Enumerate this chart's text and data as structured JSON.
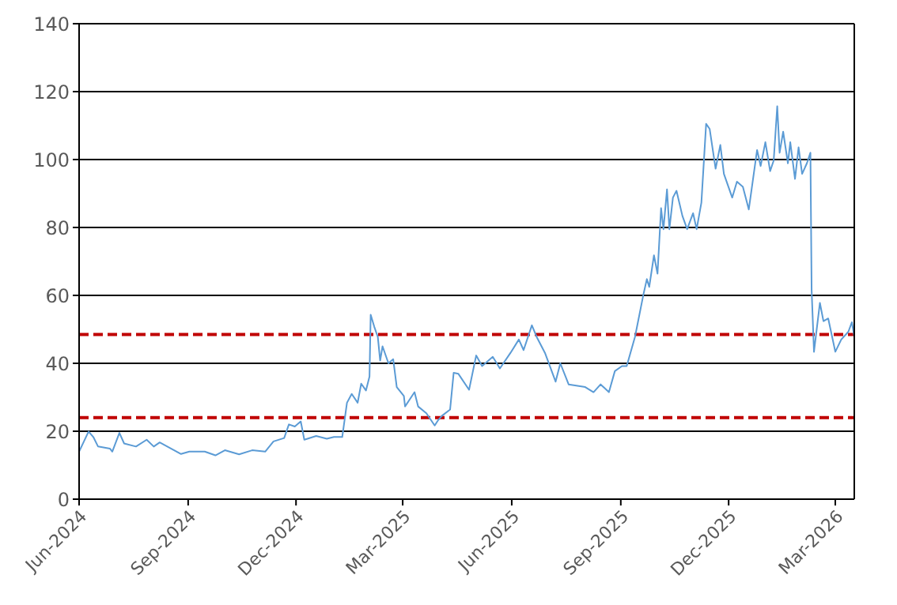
{
  "chart_data": {
    "type": "line",
    "x": [
      "2024-06-01",
      "2024-06-09",
      "2024-06-13",
      "2024-06-17",
      "2024-06-27",
      "2024-06-29",
      "2024-07-05",
      "2024-07-09",
      "2024-07-19",
      "2024-07-28",
      "2024-08-03",
      "2024-08-08",
      "2024-08-26",
      "2024-09-02",
      "2024-09-15",
      "2024-09-24",
      "2024-10-02",
      "2024-10-14",
      "2024-10-25",
      "2024-11-05",
      "2024-11-12",
      "2024-11-21",
      "2024-11-25",
      "2024-11-30",
      "2024-12-05",
      "2024-12-08",
      "2024-12-18",
      "2024-12-27",
      "2025-01-02",
      "2025-01-09",
      "2025-01-13",
      "2025-01-17",
      "2025-01-22",
      "2025-01-25",
      "2025-01-29",
      "2025-02-01",
      "2025-02-02",
      "2025-02-05",
      "2025-02-08",
      "2025-02-10",
      "2025-02-12",
      "2025-02-17",
      "2025-02-21",
      "2025-02-24",
      "2025-03-02",
      "2025-03-03",
      "2025-03-11",
      "2025-03-14",
      "2025-03-21",
      "2025-03-28",
      "2025-03-31",
      "2025-04-03",
      "2025-04-10",
      "2025-04-13",
      "2025-04-17",
      "2025-04-26",
      "2025-05-02",
      "2025-05-07",
      "2025-05-16",
      "2025-05-22",
      "2025-05-31",
      "2025-06-07",
      "2025-06-11",
      "2025-06-18",
      "2025-06-22",
      "2025-06-29",
      "2025-07-08",
      "2025-07-12",
      "2025-07-19",
      "2025-08-02",
      "2025-08-09",
      "2025-08-15",
      "2025-08-22",
      "2025-08-27",
      "2025-09-02",
      "2025-09-06",
      "2025-09-13",
      "2025-09-20",
      "2025-09-23",
      "2025-09-25",
      "2025-09-29",
      "2025-10-02",
      "2025-10-05",
      "2025-10-07",
      "2025-10-10",
      "2025-10-12",
      "2025-10-15",
      "2025-10-18",
      "2025-10-23",
      "2025-10-27",
      "2025-11-01",
      "2025-11-04",
      "2025-11-08",
      "2025-11-12",
      "2025-11-15",
      "2025-11-20",
      "2025-11-24",
      "2025-11-27",
      "2025-12-04",
      "2025-12-08",
      "2025-12-13",
      "2025-12-18",
      "2025-12-25",
      "2025-12-28",
      "2026-01-01",
      "2026-01-05",
      "2026-01-08",
      "2026-01-11",
      "2026-01-13",
      "2026-01-16",
      "2026-01-20",
      "2026-01-22",
      "2026-01-26",
      "2026-01-29",
      "2026-02-01",
      "2026-02-05",
      "2026-02-08",
      "2026-02-09",
      "2026-02-11",
      "2026-02-16",
      "2026-02-19",
      "2026-02-23",
      "2026-03-01",
      "2026-03-06",
      "2026-03-12",
      "2026-03-15",
      "2026-03-17"
    ],
    "series": [
      {
        "color": "#5b9bd5",
        "values": [
          14,
          19.9,
          18.3,
          15.5,
          14.9,
          14,
          19.5,
          16.4,
          15.5,
          17.5,
          15.5,
          16.7,
          13.3,
          14,
          14,
          12.9,
          14.4,
          13.2,
          14.4,
          14,
          17,
          18,
          22,
          21.4,
          22.9,
          17.5,
          18.6,
          17.8,
          18.3,
          18.3,
          28.4,
          31,
          28.4,
          34,
          32,
          36.1,
          54.3,
          50.8,
          47.8,
          40.8,
          45,
          40,
          41.2,
          33,
          30.4,
          27.3,
          31.5,
          27.3,
          25.3,
          21.7,
          23.3,
          24.5,
          26.4,
          37.2,
          36.9,
          32.2,
          42.3,
          39.2,
          41.9,
          38.5,
          43.1,
          47,
          43.9,
          51.2,
          47.8,
          43.1,
          34.6,
          40,
          33.8,
          33,
          31.5,
          33.8,
          31.5,
          37.7,
          39.2,
          39.2,
          47.8,
          60.1,
          64.8,
          62.5,
          71.8,
          66.4,
          85.7,
          79.5,
          91.2,
          79.5,
          88.8,
          90.8,
          83.4,
          79.5,
          84.2,
          79.5,
          87.3,
          110.5,
          109,
          97.3,
          104.3,
          95.8,
          88.8,
          93.5,
          92,
          85.3,
          102.8,
          98.1,
          105.1,
          96.6,
          99.7,
          115.7,
          102,
          108.2,
          98.9,
          105.1,
          94.3,
          103.6,
          95.8,
          98.9,
          102,
          61.7,
          43.4,
          57.8,
          52.4,
          53.2,
          43.4,
          47,
          49.3,
          52.1,
          47.8
        ]
      }
    ],
    "xlim": [
      "2024-06-01",
      "2026-03-17"
    ],
    "xticks": [
      {
        "value": "2024-06-01",
        "label": "Jun-2024"
      },
      {
        "value": "2024-09-01",
        "label": "Sep-2024"
      },
      {
        "value": "2024-12-01",
        "label": "Dec-2024"
      },
      {
        "value": "2025-03-01",
        "label": "Mar-2025"
      },
      {
        "value": "2025-06-01",
        "label": "Jun-2025"
      },
      {
        "value": "2025-09-01",
        "label": "Sep-2025"
      },
      {
        "value": "2025-12-01",
        "label": "Dec-2025"
      },
      {
        "value": "2026-03-01",
        "label": "Mar-2026"
      }
    ],
    "ylim": [
      0,
      140
    ],
    "yticks": [
      0,
      20,
      40,
      60,
      80,
      100,
      120,
      140
    ],
    "grid": "y",
    "marker": "none",
    "line_style": "solid",
    "legend": false,
    "ref_lines": [
      {
        "axis": "y",
        "value": 48.5,
        "color": "#c00000",
        "line_style": "dashed"
      },
      {
        "axis": "y",
        "value": 24,
        "color": "#c00000",
        "line_style": "dashed"
      }
    ]
  }
}
